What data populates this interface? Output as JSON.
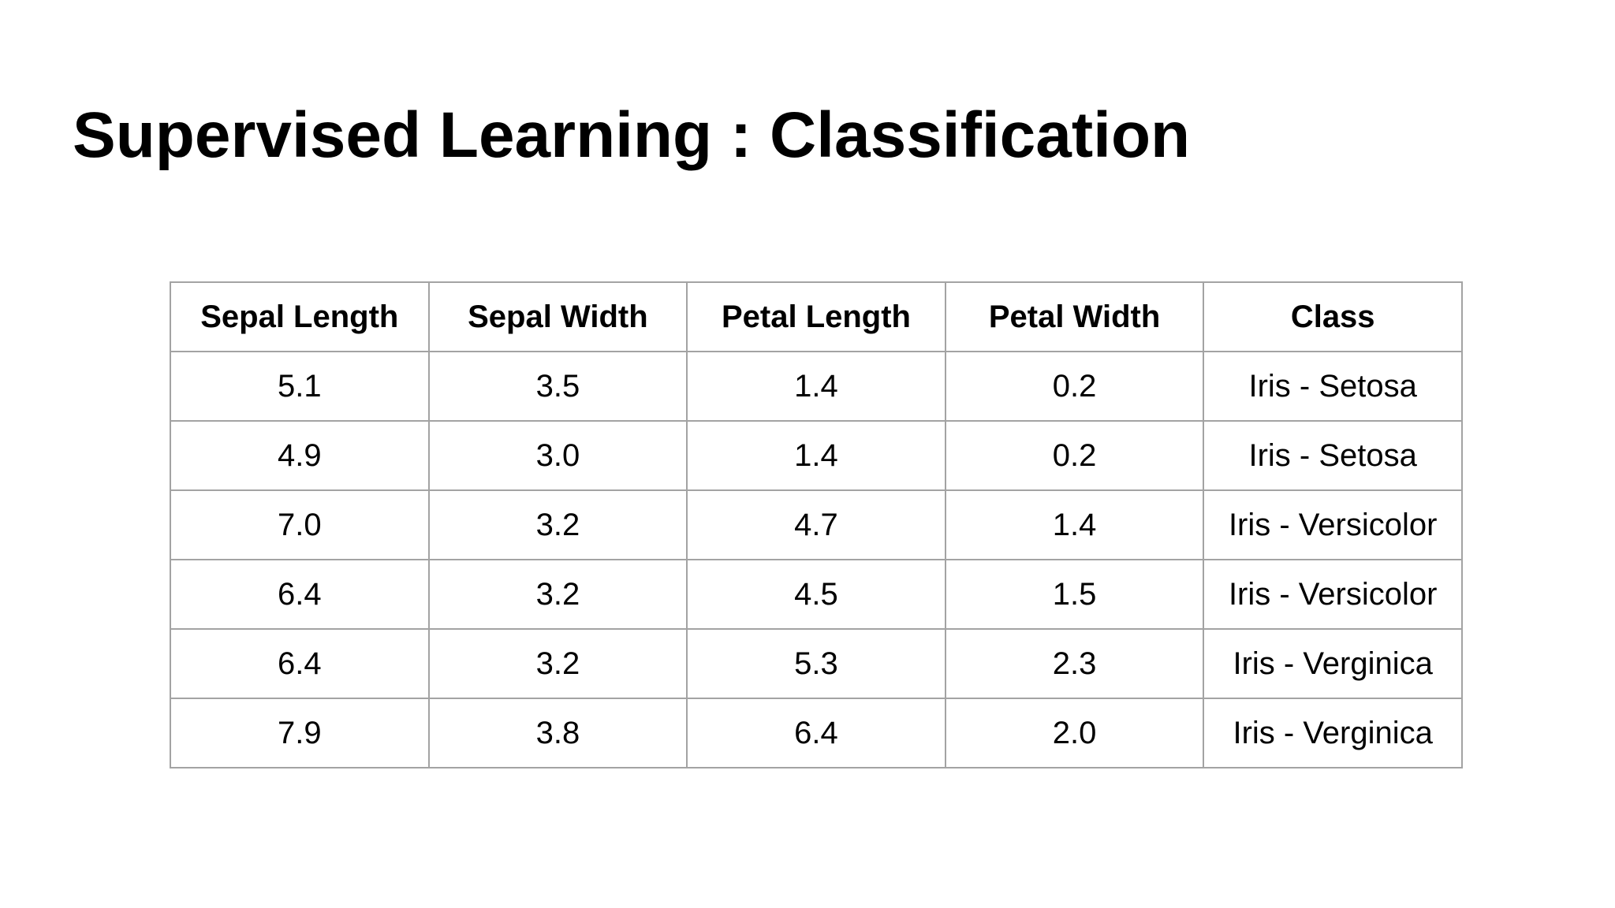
{
  "slide": {
    "title": "Supervised Learning : Classification"
  },
  "table": {
    "headers": [
      "Sepal Length",
      "Sepal Width",
      "Petal Length",
      "Petal Width",
      "Class"
    ],
    "rows": [
      [
        "5.1",
        "3.5",
        "1.4",
        "0.2",
        "Iris - Setosa"
      ],
      [
        "4.9",
        "3.0",
        "1.4",
        "0.2",
        "Iris - Setosa"
      ],
      [
        "7.0",
        "3.2",
        "4.7",
        "1.4",
        "Iris - Versicolor"
      ],
      [
        "6.4",
        "3.2",
        "4.5",
        "1.5",
        "Iris - Versicolor"
      ],
      [
        "6.4",
        "3.2",
        "5.3",
        "2.3",
        "Iris - Verginica"
      ],
      [
        "7.9",
        "3.8",
        "6.4",
        "2.0",
        "Iris - Verginica"
      ]
    ]
  },
  "colors": {
    "background": "#ffffff",
    "text": "#000000",
    "table_border": "#a3a3a3"
  }
}
